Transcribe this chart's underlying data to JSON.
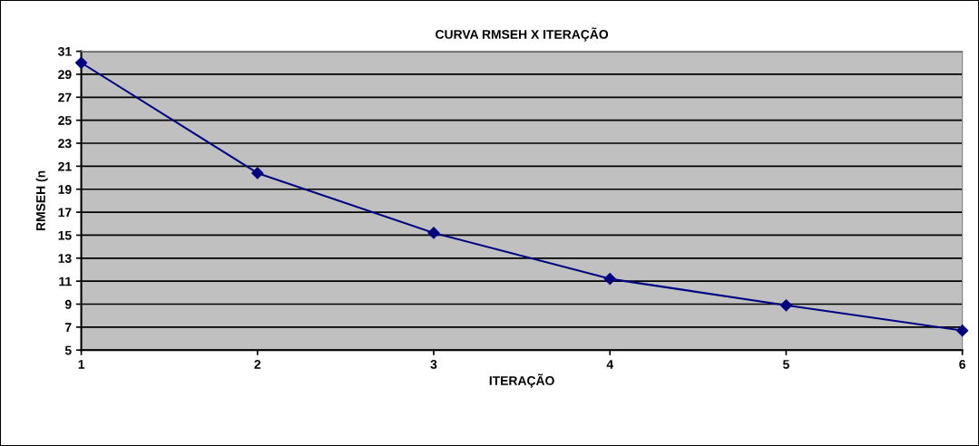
{
  "chart_data": {
    "type": "line",
    "title": "CURVA RMSEH X ITERAÇÃO",
    "xlabel": "ITERAÇÃO",
    "ylabel": "RMSEH (n",
    "x": [
      1,
      2,
      3,
      4,
      5,
      6
    ],
    "series": [
      {
        "color": "#000080",
        "values": [
          30.0,
          20.4,
          15.2,
          11.2,
          8.9,
          6.7
        ]
      }
    ],
    "xlim": [
      1,
      6
    ],
    "xticks": [
      1,
      2,
      3,
      4,
      5,
      6
    ],
    "ylim": [
      5,
      31
    ],
    "yticks": [
      5,
      7,
      9,
      11,
      13,
      15,
      17,
      19,
      21,
      23,
      25,
      27,
      29,
      31
    ],
    "grid": "y",
    "marker": "diamond",
    "line_style": "solid"
  }
}
